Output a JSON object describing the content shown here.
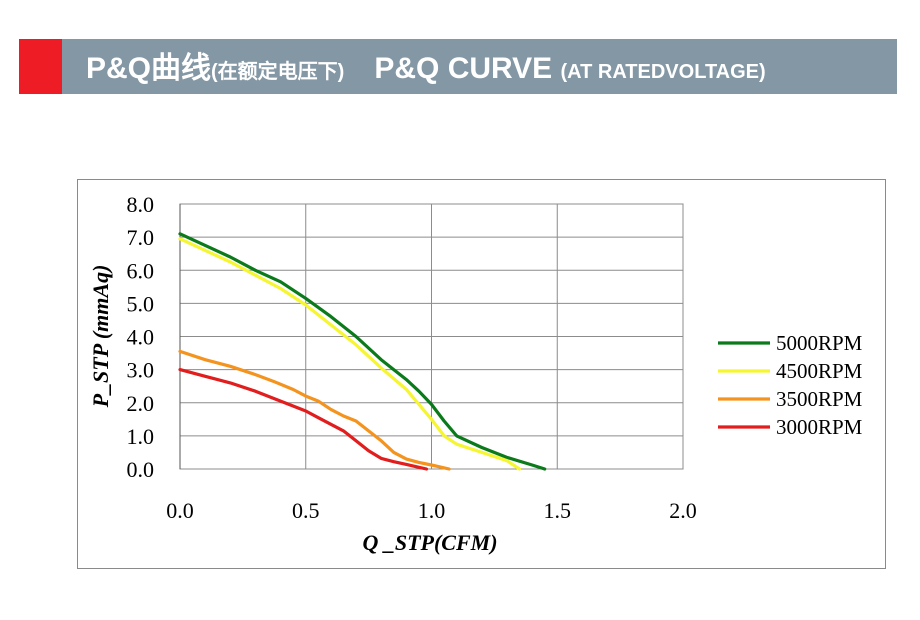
{
  "header": {
    "title_cn_main": "P&Q曲线",
    "title_cn_paren": "(在额定电压下)",
    "title_en_main": "P&Q CURVE",
    "title_en_paren": "(AT RATEDVOLTAGE)",
    "accent_red": "#ee1c25",
    "bar_grey": "#8497a5"
  },
  "chart_data": {
    "type": "line",
    "xlabel": "Q _STP(CFM)",
    "ylabel": "P_STP (mmAq)",
    "xlim": [
      0.0,
      2.0
    ],
    "ylim": [
      0.0,
      8.0
    ],
    "x_ticks": [
      "0.0",
      "0.5",
      "1.0",
      "1.5",
      "2.0"
    ],
    "y_ticks": [
      "0.0",
      "1.0",
      "2.0",
      "3.0",
      "4.0",
      "5.0",
      "6.0",
      "7.0",
      "8.0"
    ],
    "grid": true,
    "legend_position": "right",
    "series": [
      {
        "name": "5000RPM",
        "color": "#0b7a1a",
        "points": [
          [
            0.0,
            7.1
          ],
          [
            0.1,
            6.75
          ],
          [
            0.2,
            6.4
          ],
          [
            0.3,
            6.0
          ],
          [
            0.4,
            5.65
          ],
          [
            0.5,
            5.15
          ],
          [
            0.6,
            4.6
          ],
          [
            0.7,
            4.0
          ],
          [
            0.8,
            3.3
          ],
          [
            0.9,
            2.7
          ],
          [
            0.95,
            2.35
          ],
          [
            1.0,
            1.95
          ],
          [
            1.05,
            1.45
          ],
          [
            1.1,
            1.0
          ],
          [
            1.2,
            0.65
          ],
          [
            1.3,
            0.35
          ],
          [
            1.4,
            0.12
          ],
          [
            1.45,
            0.0
          ]
        ]
      },
      {
        "name": "4500RPM",
        "color": "#f5f532",
        "points": [
          [
            0.0,
            6.95
          ],
          [
            0.1,
            6.6
          ],
          [
            0.2,
            6.25
          ],
          [
            0.3,
            5.85
          ],
          [
            0.4,
            5.45
          ],
          [
            0.5,
            4.95
          ],
          [
            0.6,
            4.35
          ],
          [
            0.7,
            3.75
          ],
          [
            0.8,
            3.05
          ],
          [
            0.9,
            2.4
          ],
          [
            0.95,
            1.95
          ],
          [
            1.0,
            1.5
          ],
          [
            1.05,
            1.0
          ],
          [
            1.1,
            0.75
          ],
          [
            1.2,
            0.5
          ],
          [
            1.3,
            0.25
          ],
          [
            1.35,
            0.0
          ]
        ]
      },
      {
        "name": "3500RPM",
        "color": "#f4931e",
        "points": [
          [
            0.0,
            3.55
          ],
          [
            0.1,
            3.3
          ],
          [
            0.2,
            3.1
          ],
          [
            0.3,
            2.85
          ],
          [
            0.37,
            2.65
          ],
          [
            0.45,
            2.4
          ],
          [
            0.5,
            2.2
          ],
          [
            0.55,
            2.05
          ],
          [
            0.6,
            1.8
          ],
          [
            0.65,
            1.6
          ],
          [
            0.7,
            1.45
          ],
          [
            0.75,
            1.15
          ],
          [
            0.8,
            0.85
          ],
          [
            0.85,
            0.5
          ],
          [
            0.9,
            0.3
          ],
          [
            0.95,
            0.2
          ],
          [
            1.0,
            0.12
          ],
          [
            1.07,
            0.0
          ]
        ]
      },
      {
        "name": "3000RPM",
        "color": "#e21d1d",
        "points": [
          [
            0.0,
            3.0
          ],
          [
            0.1,
            2.8
          ],
          [
            0.2,
            2.6
          ],
          [
            0.3,
            2.35
          ],
          [
            0.4,
            2.05
          ],
          [
            0.5,
            1.75
          ],
          [
            0.55,
            1.55
          ],
          [
            0.65,
            1.15
          ],
          [
            0.7,
            0.85
          ],
          [
            0.75,
            0.55
          ],
          [
            0.8,
            0.32
          ],
          [
            0.85,
            0.22
          ],
          [
            0.9,
            0.14
          ],
          [
            0.95,
            0.05
          ],
          [
            0.98,
            0.0
          ]
        ]
      }
    ]
  }
}
